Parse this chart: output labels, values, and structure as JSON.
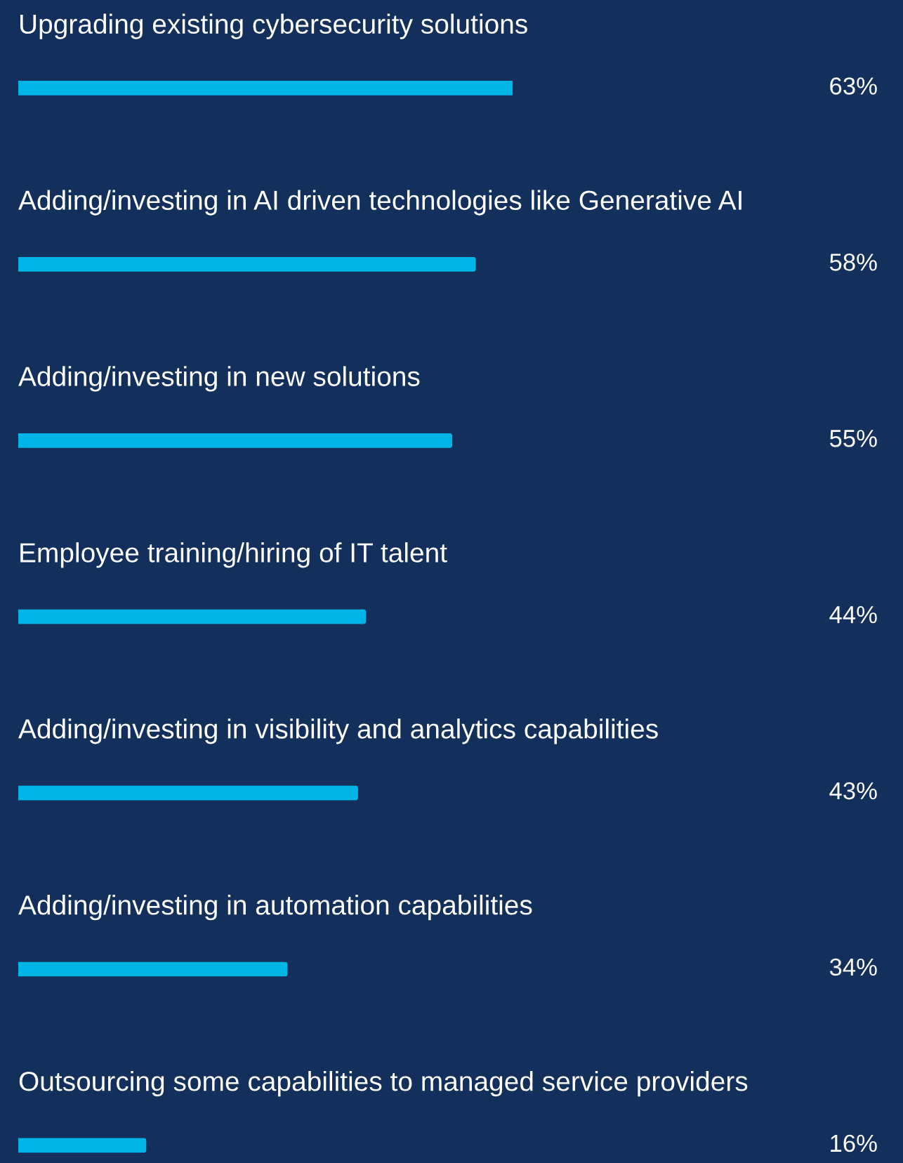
{
  "chart_data": {
    "type": "bar",
    "orientation": "horizontal",
    "categories": [
      "Upgrading existing cybersecurity solutions",
      "Adding/investing in AI driven technologies like Generative AI",
      "Adding/investing in new solutions",
      "Employee training/hiring of IT talent",
      "Adding/investing in visibility and analytics capabilities",
      "Adding/investing in automation capabilities",
      "Outsourcing some capabilities to managed service providers"
    ],
    "values": [
      63,
      58,
      55,
      44,
      43,
      34,
      16
    ],
    "value_labels": [
      "63%",
      "58%",
      "55%",
      "44%",
      "43%",
      "34%",
      "16%"
    ],
    "color": "#00b4e6"
  }
}
